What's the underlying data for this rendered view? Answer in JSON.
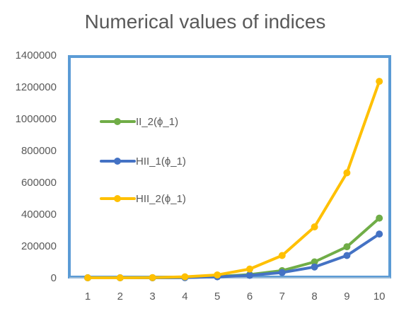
{
  "chart_data": {
    "type": "line",
    "title": "Numerical values of indices",
    "xlabel": "",
    "ylabel": "",
    "x": [
      1,
      2,
      3,
      4,
      5,
      6,
      7,
      8,
      9,
      10
    ],
    "ylim": [
      0,
      1400000
    ],
    "yticks": [
      0,
      200000,
      400000,
      600000,
      800000,
      1000000,
      1200000,
      1400000
    ],
    "grid": false,
    "legend_position": "left, inside plot area",
    "series": [
      {
        "name": "II_2(ϕ_1)",
        "color": "#70ad47",
        "values": [
          0,
          0,
          200,
          1500,
          8000,
          20000,
          45000,
          100000,
          195000,
          375000
        ]
      },
      {
        "name": "HII_1(ϕ_1)",
        "color": "#4472c4",
        "values": [
          0,
          0,
          150,
          1200,
          6000,
          15000,
          33000,
          68000,
          140000,
          275000
        ]
      },
      {
        "name": "HII_2(ϕ_1)",
        "color": "#ffc000",
        "values": [
          0,
          0,
          1000,
          6000,
          18000,
          55000,
          140000,
          320000,
          660000,
          1235000
        ]
      }
    ],
    "plot_border_color": "#5b9bd5"
  }
}
